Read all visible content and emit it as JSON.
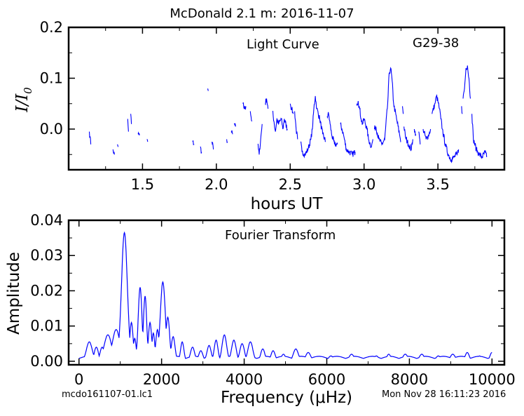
{
  "figure": {
    "title": "McDonald 2.1 m:  2016-11-07",
    "filename": "mcdo161107-01.lc1",
    "timestamp": "Mon Nov 28 16:11:23 2016"
  },
  "chart_data": [
    {
      "type": "line",
      "panel": "light-curve",
      "annotation": "Light Curve",
      "object_label": "G29-38",
      "xlabel": "hours UT",
      "ylabel_main": "I/I",
      "ylabel_sub": "0",
      "xlim": [
        1.0,
        3.95
      ],
      "ylim": [
        -0.08,
        0.2
      ],
      "xticks": [
        1.5,
        2.0,
        2.5,
        3.0,
        3.5
      ],
      "xtick_labels": [
        "1.5",
        "2.0",
        "2.5",
        "3.0",
        "3.5"
      ],
      "yticks": [
        0.0,
        0.1,
        0.2
      ],
      "ytick_labels": [
        "0.0",
        "0.1",
        "0.2"
      ],
      "grid": false,
      "color": "#0000ff",
      "segments": [
        [
          [
            1.14,
            -0.005
          ],
          [
            1.145,
            -0.015
          ],
          [
            1.15,
            -0.03
          ]
        ],
        [
          [
            1.3,
            -0.04
          ],
          [
            1.31,
            -0.05
          ]
        ],
        [
          [
            1.33,
            -0.03
          ],
          [
            1.335,
            -0.035
          ]
        ],
        [
          [
            1.4,
            0.02
          ],
          [
            1.405,
            -0.005
          ]
        ],
        [
          [
            1.42,
            0.03
          ],
          [
            1.425,
            0.01
          ]
        ],
        [
          [
            1.47,
            -0.01
          ],
          [
            1.48,
            -0.012
          ]
        ],
        [
          [
            1.53,
            -0.02
          ],
          [
            1.535,
            -0.025
          ]
        ],
        [
          [
            1.84,
            -0.025
          ],
          [
            1.85,
            -0.03
          ]
        ],
        [
          [
            1.89,
            -0.035
          ],
          [
            1.9,
            -0.045
          ]
        ],
        [
          [
            1.94,
            0.078
          ],
          [
            1.945,
            0.075
          ]
        ],
        [
          [
            1.97,
            -0.025
          ],
          [
            1.98,
            -0.04
          ]
        ],
        [
          [
            2.07,
            -0.02
          ],
          [
            2.075,
            -0.025
          ]
        ],
        [
          [
            2.1,
            -0.005
          ],
          [
            2.11,
            -0.01
          ]
        ],
        [
          [
            2.12,
            0.01
          ],
          [
            2.13,
            0.005
          ]
        ],
        [
          [
            2.18,
            0.05
          ],
          [
            2.19,
            0.04
          ],
          [
            2.2,
            0.045
          ]
        ],
        [
          [
            2.23,
            0.035
          ],
          [
            2.24,
            0.015
          ]
        ],
        [
          [
            2.28,
            -0.03
          ],
          [
            2.29,
            -0.05
          ],
          [
            2.3,
            -0.02
          ],
          [
            2.31,
            0.01
          ]
        ],
        [
          [
            2.33,
            0.05
          ],
          [
            2.34,
            0.06
          ],
          [
            2.35,
            0.04
          ]
        ],
        [
          [
            2.38,
            0.035
          ],
          [
            2.39,
            0.015
          ],
          [
            2.4,
            -0.005
          ],
          [
            2.41,
            0.02
          ],
          [
            2.42,
            0.01
          ],
          [
            2.44,
            0.02
          ],
          [
            2.45,
            0.0
          ],
          [
            2.46,
            0.02
          ],
          [
            2.48,
            0.0
          ]
        ],
        [
          [
            2.5,
            0.05
          ],
          [
            2.51,
            0.04
          ],
          [
            2.52,
            0.03
          ]
        ],
        [
          [
            2.53,
            0.035
          ],
          [
            2.54,
            0.0
          ],
          [
            2.55,
            -0.02
          ]
        ],
        [
          [
            2.57,
            -0.025
          ],
          [
            2.58,
            -0.045
          ],
          [
            2.6,
            -0.05
          ],
          [
            2.62,
            -0.04
          ],
          [
            2.64,
            -0.02
          ],
          [
            2.65,
            0.0
          ],
          [
            2.66,
            0.04
          ],
          [
            2.67,
            0.065
          ],
          [
            2.68,
            0.04
          ],
          [
            2.7,
            0.02
          ],
          [
            2.72,
            -0.01
          ],
          [
            2.74,
            -0.025
          ]
        ],
        [
          [
            2.75,
            0.025
          ],
          [
            2.76,
            0.03
          ],
          [
            2.77,
            0.01
          ],
          [
            2.78,
            -0.01
          ],
          [
            2.8,
            -0.03
          ],
          [
            2.82,
            -0.03
          ]
        ],
        [
          [
            2.84,
            0.01
          ],
          [
            2.85,
            0.0
          ],
          [
            2.86,
            -0.01
          ],
          [
            2.88,
            -0.04
          ],
          [
            2.9,
            -0.045
          ],
          [
            2.92,
            -0.05
          ],
          [
            2.94,
            -0.045
          ]
        ],
        [
          [
            2.95,
            0.05
          ],
          [
            2.96,
            0.055
          ],
          [
            2.97,
            0.04
          ],
          [
            2.98,
            0.02
          ],
          [
            2.99,
            0.01
          ],
          [
            3.0,
            0.02
          ],
          [
            3.02,
            0.0
          ],
          [
            3.03,
            -0.02
          ],
          [
            3.05,
            -0.035
          ],
          [
            3.06,
            -0.02
          ]
        ],
        [
          [
            3.07,
            0.0
          ],
          [
            3.08,
            0.005
          ],
          [
            3.1,
            -0.02
          ],
          [
            3.12,
            -0.03
          ],
          [
            3.14,
            -0.02
          ],
          [
            3.16,
            0.05
          ],
          [
            3.17,
            0.11
          ],
          [
            3.18,
            0.12
          ],
          [
            3.19,
            0.095
          ],
          [
            3.2,
            0.05
          ],
          [
            3.22,
            0.02
          ],
          [
            3.24,
            -0.01
          ],
          [
            3.25,
            -0.025
          ]
        ],
        [
          [
            3.26,
            0.045
          ],
          [
            3.265,
            0.03
          ]
        ],
        [
          [
            3.27,
            0.005
          ],
          [
            3.28,
            -0.015
          ],
          [
            3.3,
            -0.03
          ],
          [
            3.32,
            -0.04
          ],
          [
            3.33,
            -0.02
          ]
        ],
        [
          [
            3.34,
            0.0
          ],
          [
            3.35,
            -0.01
          ]
        ],
        [
          [
            3.37,
            -0.005
          ],
          [
            3.38,
            -0.03
          ]
        ],
        [
          [
            3.4,
            0.0
          ],
          [
            3.42,
            -0.02
          ],
          [
            3.44,
            -0.01
          ],
          [
            3.45,
            0.0
          ]
        ],
        [
          [
            3.46,
            0.03
          ],
          [
            3.48,
            0.05
          ],
          [
            3.49,
            0.065
          ],
          [
            3.5,
            0.055
          ],
          [
            3.51,
            0.04
          ],
          [
            3.52,
            0.02
          ],
          [
            3.53,
            0.0
          ],
          [
            3.55,
            -0.03
          ],
          [
            3.57,
            -0.05
          ],
          [
            3.59,
            -0.06
          ],
          [
            3.61,
            -0.055
          ],
          [
            3.63,
            -0.05
          ],
          [
            3.64,
            -0.04
          ]
        ],
        [
          [
            3.66,
            0.045
          ],
          [
            3.665,
            0.03
          ]
        ],
        [
          [
            3.67,
            0.06
          ],
          [
            3.68,
            0.08
          ],
          [
            3.69,
            0.12
          ],
          [
            3.7,
            0.125
          ],
          [
            3.71,
            0.1
          ],
          [
            3.72,
            0.06
          ]
        ],
        [
          [
            3.73,
            0.03
          ],
          [
            3.74,
            -0.02
          ],
          [
            3.76,
            -0.04
          ],
          [
            3.78,
            -0.05
          ],
          [
            3.8,
            -0.055
          ],
          [
            3.82,
            -0.045
          ],
          [
            3.83,
            -0.055
          ]
        ]
      ]
    },
    {
      "type": "line",
      "panel": "fourier-transform",
      "annotation": "Fourier Transform",
      "xlabel": "Frequency (μHz)",
      "ylabel": "Amplitude",
      "xlim": [
        -250,
        10300
      ],
      "ylim": [
        -0.001,
        0.04
      ],
      "xticks": [
        0,
        2000,
        4000,
        6000,
        8000,
        10000
      ],
      "xtick_labels": [
        "0",
        "2000",
        "4000",
        "6000",
        "8000",
        "10000"
      ],
      "yticks": [
        0.0,
        0.01,
        0.02,
        0.03,
        0.04
      ],
      "ytick_labels": [
        "0.00",
        "0.01",
        "0.02",
        "0.03",
        "0.04"
      ],
      "grid": false,
      "color": "#0000ff",
      "peaks": [
        [
          250,
          0.0055,
          70
        ],
        [
          420,
          0.004,
          50
        ],
        [
          560,
          0.004,
          50
        ],
        [
          700,
          0.0075,
          90
        ],
        [
          900,
          0.009,
          90
        ],
        [
          1100,
          0.0365,
          70
        ],
        [
          1270,
          0.011,
          40
        ],
        [
          1350,
          0.0065,
          35
        ],
        [
          1480,
          0.021,
          45
        ],
        [
          1600,
          0.0185,
          40
        ],
        [
          1720,
          0.011,
          40
        ],
        [
          1800,
          0.008,
          35
        ],
        [
          1900,
          0.009,
          40
        ],
        [
          2030,
          0.0225,
          60
        ],
        [
          2150,
          0.0125,
          45
        ],
        [
          2280,
          0.007,
          45
        ],
        [
          2500,
          0.0055,
          40
        ],
        [
          2750,
          0.004,
          50
        ],
        [
          2950,
          0.003,
          50
        ],
        [
          3150,
          0.0045,
          50
        ],
        [
          3320,
          0.006,
          45
        ],
        [
          3520,
          0.0075,
          55
        ],
        [
          3750,
          0.006,
          55
        ],
        [
          3950,
          0.005,
          55
        ],
        [
          4150,
          0.0055,
          60
        ],
        [
          4450,
          0.0035,
          50
        ],
        [
          4700,
          0.003,
          50
        ],
        [
          4950,
          0.002,
          50
        ],
        [
          5250,
          0.0035,
          60
        ],
        [
          5550,
          0.0025,
          60
        ],
        [
          6100,
          0.0015,
          60
        ],
        [
          6600,
          0.002,
          60
        ],
        [
          7200,
          0.0015,
          60
        ],
        [
          7500,
          0.002,
          50
        ],
        [
          7900,
          0.002,
          60
        ],
        [
          8300,
          0.002,
          60
        ],
        [
          8700,
          0.0015,
          60
        ],
        [
          9050,
          0.002,
          60
        ],
        [
          9400,
          0.0025,
          50
        ],
        [
          9700,
          0.0015,
          50
        ],
        [
          10000,
          0.0025,
          50
        ]
      ]
    }
  ]
}
